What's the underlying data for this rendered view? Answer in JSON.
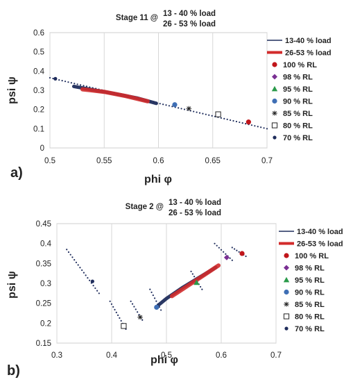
{
  "chart_data": [
    {
      "type": "scatter",
      "panel_label": "a)",
      "title_prefix": "Stage 11  @",
      "title_lines": [
        "13 - 40 % load",
        "26 - 53 % load"
      ],
      "xlabel": "phi φ",
      "ylabel": "psi ψ",
      "xlim": [
        0.5,
        0.7
      ],
      "ylim": [
        0,
        0.6
      ],
      "xticks": [
        "0.5",
        "0.55",
        "0.6",
        "0.65",
        "0.7"
      ],
      "yticks": [
        "0",
        "0.1",
        "0.2",
        "0.3",
        "0.4",
        "0.5",
        "0.6"
      ],
      "grid": "vertical",
      "legend_position": "right",
      "legend": [
        {
          "label": "13-40 % load",
          "kind": "line-thin",
          "color": "#1f2d5c"
        },
        {
          "label": "26-53 % load",
          "kind": "line-thick",
          "color": "#d22b2b"
        },
        {
          "label": "100 % RL",
          "kind": "circle",
          "color": "#c0161b"
        },
        {
          "label": "98 % RL",
          "kind": "diamond",
          "color": "#7a2f93"
        },
        {
          "label": "95 % RL",
          "kind": "triangle",
          "color": "#2a9a4a"
        },
        {
          "label": "90 % RL",
          "kind": "circle",
          "color": "#3f6fb5"
        },
        {
          "label": "85 % RL",
          "kind": "star",
          "color": "#222222"
        },
        {
          "label": "80 % RL",
          "kind": "square",
          "color": "#222222"
        },
        {
          "label": "70 % RL",
          "kind": "circle-small",
          "color": "#1f2d5c"
        }
      ],
      "series": [
        {
          "name": "13-40 % load",
          "x": [
            0.522,
            0.54,
            0.56,
            0.58,
            0.598
          ],
          "y": [
            0.32,
            0.302,
            0.282,
            0.26,
            0.232
          ]
        },
        {
          "name": "26-53 % load",
          "x": [
            0.53,
            0.55,
            0.57,
            0.59
          ],
          "y": [
            0.305,
            0.292,
            0.27,
            0.243
          ]
        },
        {
          "name": "100 % RL",
          "x": [
            0.683
          ],
          "y": [
            0.135
          ]
        },
        {
          "name": "90 % RL",
          "x": [
            0.615
          ],
          "y": [
            0.225
          ]
        },
        {
          "name": "85 % RL",
          "x": [
            0.628
          ],
          "y": [
            0.205
          ]
        },
        {
          "name": "80 % RL",
          "x": [
            0.655
          ],
          "y": [
            0.175
          ]
        },
        {
          "name": "70 % RL",
          "x": [
            0.505
          ],
          "y": [
            0.36
          ]
        }
      ],
      "dotted_trail": {
        "x": [
          0.5,
          0.7
        ],
        "y": [
          0.365,
          0.1
        ]
      }
    },
    {
      "type": "scatter",
      "panel_label": "b)",
      "title_prefix": "Stage 2  @",
      "title_lines": [
        "13 - 40 % load",
        "26 - 53 % load"
      ],
      "xlabel": "phi φ",
      "ylabel": "psi ψ",
      "xlim": [
        0.3,
        0.7
      ],
      "ylim": [
        0.15,
        0.45
      ],
      "xticks": [
        "0.3",
        "0.4",
        "0.5",
        "0.6",
        "0.7"
      ],
      "yticks": [
        "0.15",
        "0.2",
        "0.25",
        "0.3",
        "0.35",
        "0.4",
        "0.45"
      ],
      "grid": "vertical",
      "legend_position": "right",
      "legend": [
        {
          "label": "13-40 % load",
          "kind": "line-thin",
          "color": "#1f2d5c"
        },
        {
          "label": "26-53 % load",
          "kind": "line-thick",
          "color": "#d22b2b"
        },
        {
          "label": "100 % RL",
          "kind": "circle",
          "color": "#c0161b"
        },
        {
          "label": "98 % RL",
          "kind": "diamond",
          "color": "#7a2f93"
        },
        {
          "label": "95 % RL",
          "kind": "triangle",
          "color": "#2a9a4a"
        },
        {
          "label": "90 % RL",
          "kind": "circle",
          "color": "#3f6fb5"
        },
        {
          "label": "85 % RL",
          "kind": "star",
          "color": "#222222"
        },
        {
          "label": "80 % RL",
          "kind": "square",
          "color": "#222222"
        },
        {
          "label": "70 % RL",
          "kind": "circle-small",
          "color": "#1f2d5c"
        }
      ],
      "series": [
        {
          "name": "13-40 % load",
          "x": [
            0.485,
            0.5,
            0.53,
            0.56,
            0.59
          ],
          "y": [
            0.245,
            0.262,
            0.29,
            0.315,
            0.34
          ]
        },
        {
          "name": "26-53 % load",
          "x": [
            0.51,
            0.54,
            0.57,
            0.595
          ],
          "y": [
            0.268,
            0.295,
            0.322,
            0.345
          ]
        },
        {
          "name": "100 % RL",
          "x": [
            0.638
          ],
          "y": [
            0.375
          ]
        },
        {
          "name": "98 % RL",
          "x": [
            0.61
          ],
          "y": [
            0.365
          ]
        },
        {
          "name": "95 % RL",
          "x": [
            0.555
          ],
          "y": [
            0.302
          ]
        },
        {
          "name": "90 % RL",
          "x": [
            0.482
          ],
          "y": [
            0.24
          ]
        },
        {
          "name": "85 % RL",
          "x": [
            0.452
          ],
          "y": [
            0.215
          ]
        },
        {
          "name": "80 % RL",
          "x": [
            0.422
          ],
          "y": [
            0.193
          ]
        },
        {
          "name": "70 % RL",
          "x": [
            0.365
          ],
          "y": [
            0.305
          ]
        }
      ],
      "dotted_segments": [
        {
          "x": [
            0.318,
            0.377
          ],
          "y": [
            0.385,
            0.275
          ]
        },
        {
          "x": [
            0.397,
            0.426
          ],
          "y": [
            0.255,
            0.185
          ]
        },
        {
          "x": [
            0.435,
            0.456
          ],
          "y": [
            0.255,
            0.208
          ]
        },
        {
          "x": [
            0.47,
            0.49
          ],
          "y": [
            0.285,
            0.233
          ]
        },
        {
          "x": [
            0.545,
            0.565
          ],
          "y": [
            0.33,
            0.285
          ]
        },
        {
          "x": [
            0.588,
            0.62
          ],
          "y": [
            0.4,
            0.358
          ]
        },
        {
          "x": [
            0.62,
            0.645
          ],
          "y": [
            0.39,
            0.368
          ]
        }
      ]
    }
  ]
}
